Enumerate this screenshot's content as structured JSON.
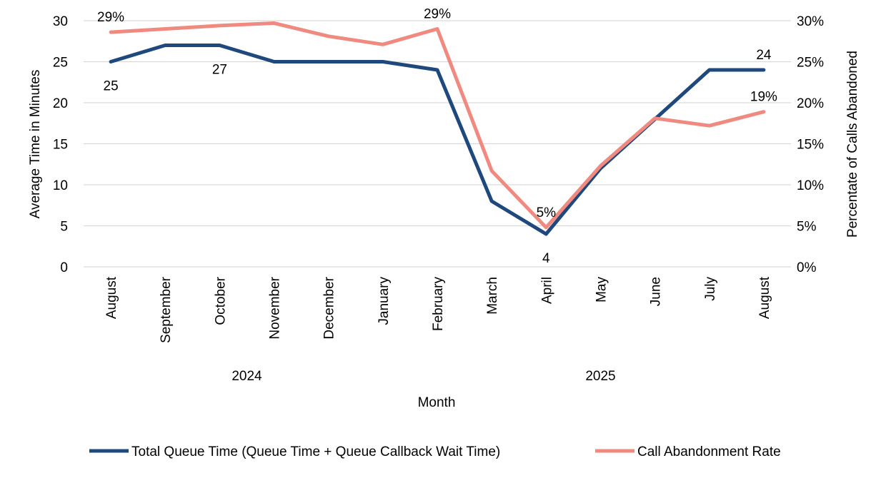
{
  "chart_data": {
    "type": "line",
    "categories": [
      "August",
      "September",
      "October",
      "November",
      "December",
      "January",
      "February",
      "March",
      "April",
      "May",
      "June",
      "July",
      "August"
    ],
    "year_groups": [
      {
        "label": "2024",
        "from": 0,
        "to": 5
      },
      {
        "label": "2025",
        "from": 6,
        "to": 12
      }
    ],
    "xlabel": "Month",
    "ylabel_left": "Average Time in Minutes",
    "ylabel_right": "Percentate of Calls Abandoned",
    "ylim_left": [
      0,
      30
    ],
    "left_ticks": [
      "0",
      "5",
      "10",
      "15",
      "20",
      "25",
      "30"
    ],
    "ylim_right": [
      0,
      30
    ],
    "right_ticks": [
      "0%",
      "5%",
      "10%",
      "15%",
      "20%",
      "25%",
      "30%"
    ],
    "grid": true,
    "legend_position": "bottom",
    "series": [
      {
        "name": "Total Queue Time (Queue Time + Queue Callback Wait Time)",
        "axis": "left",
        "color": "#1f497d",
        "values": [
          25,
          27,
          27,
          25,
          25,
          25,
          24,
          8,
          4,
          12,
          18,
          24,
          24
        ],
        "labels": [
          {
            "index": 0,
            "text": "25",
            "pos": "below"
          },
          {
            "index": 2,
            "text": "27",
            "pos": "below"
          },
          {
            "index": 8,
            "text": "4",
            "pos": "below"
          },
          {
            "index": 12,
            "text": "24",
            "pos": "above"
          }
        ]
      },
      {
        "name": "Call Abandonment Rate",
        "axis": "right",
        "color": "#f08a80",
        "values": [
          28.6,
          29.0,
          29.4,
          29.7,
          28.1,
          27.1,
          29.0,
          11.7,
          4.8,
          12.3,
          18.1,
          17.2,
          18.9
        ],
        "labels": [
          {
            "index": 0,
            "text": "29%",
            "pos": "above"
          },
          {
            "index": 6,
            "text": "29%",
            "pos": "above"
          },
          {
            "index": 8,
            "text": "5%",
            "pos": "above"
          },
          {
            "index": 12,
            "text": "19%",
            "pos": "above"
          }
        ]
      }
    ]
  }
}
